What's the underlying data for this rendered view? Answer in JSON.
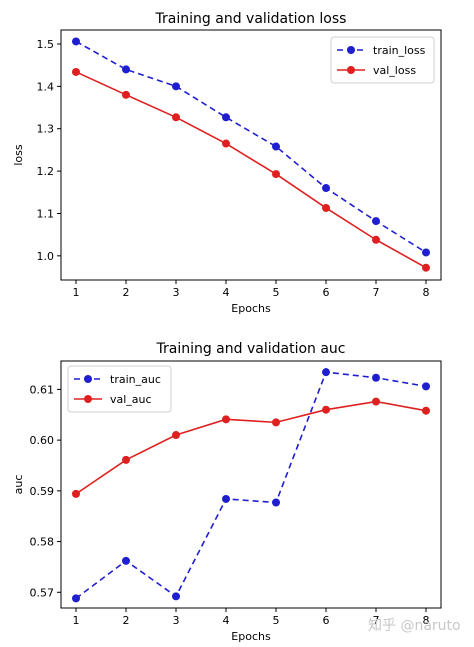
{
  "chart_data": [
    {
      "type": "line",
      "title": "Training and validation loss",
      "xlabel": "Epochs",
      "ylabel": "loss",
      "x": [
        1,
        2,
        3,
        4,
        5,
        6,
        7,
        8
      ],
      "xticks": [
        "1",
        "2",
        "3",
        "4",
        "5",
        "6",
        "7",
        "8"
      ],
      "yticks": [
        "1.0",
        "1.1",
        "1.2",
        "1.3",
        "1.4",
        "1.5"
      ],
      "xlim": [
        0.7,
        8.3
      ],
      "ylim": [
        0.943,
        1.533
      ],
      "legend_position": "top-right",
      "grid": false,
      "series": [
        {
          "name": "train_loss",
          "color": "#1f1fd0",
          "style": "dashed",
          "values": [
            1.506,
            1.44,
            1.4,
            1.327,
            1.258,
            1.16,
            1.082,
            1.008
          ]
        },
        {
          "name": "val_loss",
          "color": "#e02020",
          "style": "solid",
          "values": [
            1.434,
            1.38,
            1.327,
            1.265,
            1.193,
            1.113,
            1.038,
            0.972
          ]
        }
      ]
    },
    {
      "type": "line",
      "title": "Training and validation auc",
      "xlabel": "Epochs",
      "ylabel": "auc",
      "x": [
        1,
        2,
        3,
        4,
        5,
        6,
        7,
        8
      ],
      "xticks": [
        "1",
        "2",
        "3",
        "4",
        "5",
        "6",
        "7",
        "8"
      ],
      "yticks": [
        "0.57",
        "0.58",
        "0.59",
        "0.60",
        "0.61"
      ],
      "xlim": [
        0.7,
        8.3
      ],
      "ylim": [
        0.5669,
        0.6156
      ],
      "legend_position": "top-left",
      "grid": false,
      "series": [
        {
          "name": "train_auc",
          "color": "#1f1fd0",
          "style": "dashed",
          "values": [
            0.5688,
            0.5762,
            0.5692,
            0.5884,
            0.5877,
            0.6134,
            0.6123,
            0.6106
          ]
        },
        {
          "name": "val_auc",
          "color": "#e02020",
          "style": "solid",
          "values": [
            0.5894,
            0.5961,
            0.601,
            0.6041,
            0.6035,
            0.606,
            0.6076,
            0.6058
          ]
        }
      ]
    }
  ],
  "watermark": {
    "text": "知乎 @naruto"
  }
}
